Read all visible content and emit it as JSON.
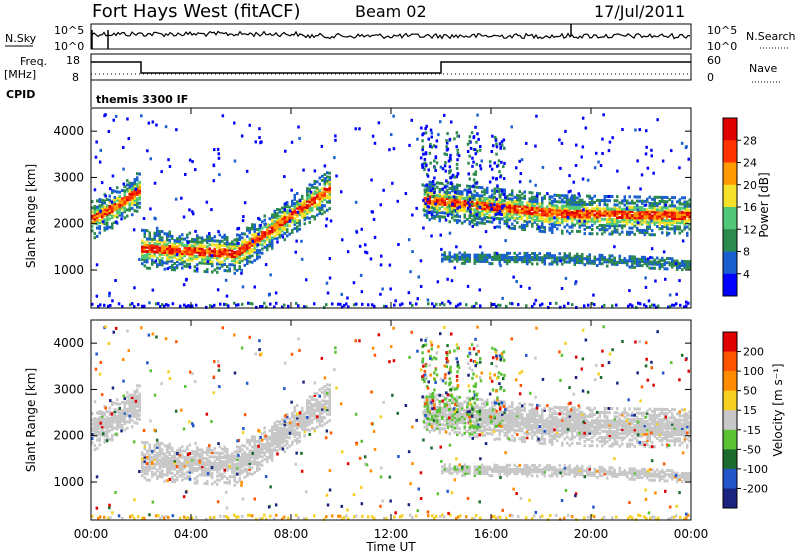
{
  "header": {
    "radar": "Fort Hays West (fitACF)",
    "beam": "Beam 02",
    "date": "17/Jul/2011"
  },
  "summary": {
    "nsky_label": "N.Sky",
    "nsearch_label": "N.Search",
    "nsky_ticks": [
      "10^5",
      "10^0"
    ],
    "nsearch_ticks": [
      "10^5",
      "10^0"
    ],
    "freq_label_1": "Freq.",
    "freq_label_2": "[MHz]",
    "freq_ticks": [
      "18",
      "8"
    ],
    "nave_label": "Nave",
    "nave_ticks": [
      "60",
      "0"
    ],
    "cpid_label": "CPID",
    "cpid_text": "themis 3300 IF"
  },
  "chart_data": [
    {
      "type": "heatmap",
      "name": "power",
      "xlabel": "",
      "ylabel": "Slant Range [km]",
      "ylim": [
        180,
        4500
      ],
      "yticks": [
        "1000",
        "2000",
        "3000",
        "4000"
      ],
      "xlim": [
        "00:00",
        "24:00"
      ],
      "colorbar_label": "Power [dB]",
      "colorbar_ticks": [
        "4",
        "8",
        "12",
        "16",
        "20",
        "24",
        "28"
      ],
      "colorbar_colors": [
        "#0000ff",
        "#1a5fd0",
        "#2d8a4e",
        "#52c77a",
        "#f5e12a",
        "#ff9a00",
        "#ff3300",
        "#e00000"
      ],
      "echo_bands": [
        {
          "t_start": 0.0,
          "t_end": 2.0,
          "range": [
            2120,
            2420,
            2800
          ]
        },
        {
          "t_start": 2.0,
          "t_end": 9.5,
          "range": [
            1500,
            1380,
            2780
          ]
        },
        {
          "t_start": 13.3,
          "t_end": 24.0,
          "range": [
            2550,
            2250,
            2200
          ]
        },
        {
          "t_start": 14.0,
          "t_end": 24.0,
          "range": [
            1300,
            1280,
            1150
          ]
        }
      ]
    },
    {
      "type": "heatmap",
      "name": "velocity",
      "xlabel": "Time UT",
      "ylabel": "Slant Range [km]",
      "ylim": [
        180,
        4500
      ],
      "yticks": [
        "1000",
        "2000",
        "3000",
        "4000"
      ],
      "xticks": [
        "00:00",
        "04:00",
        "08:00",
        "12:00",
        "16:00",
        "20:00",
        "00:00"
      ],
      "colorbar_label": "Velocity [m s⁻¹]",
      "colorbar_ticks": [
        "200",
        "100",
        "50",
        "15",
        "-15",
        "-50",
        "-100",
        "-200"
      ],
      "colorbar_colors": [
        "#1a237e",
        "#2156c8",
        "#1b6b2e",
        "#5bc236",
        "#c8c8c8",
        "#f5d020",
        "#ff8c00",
        "#ff5500",
        "#e00000"
      ]
    }
  ]
}
